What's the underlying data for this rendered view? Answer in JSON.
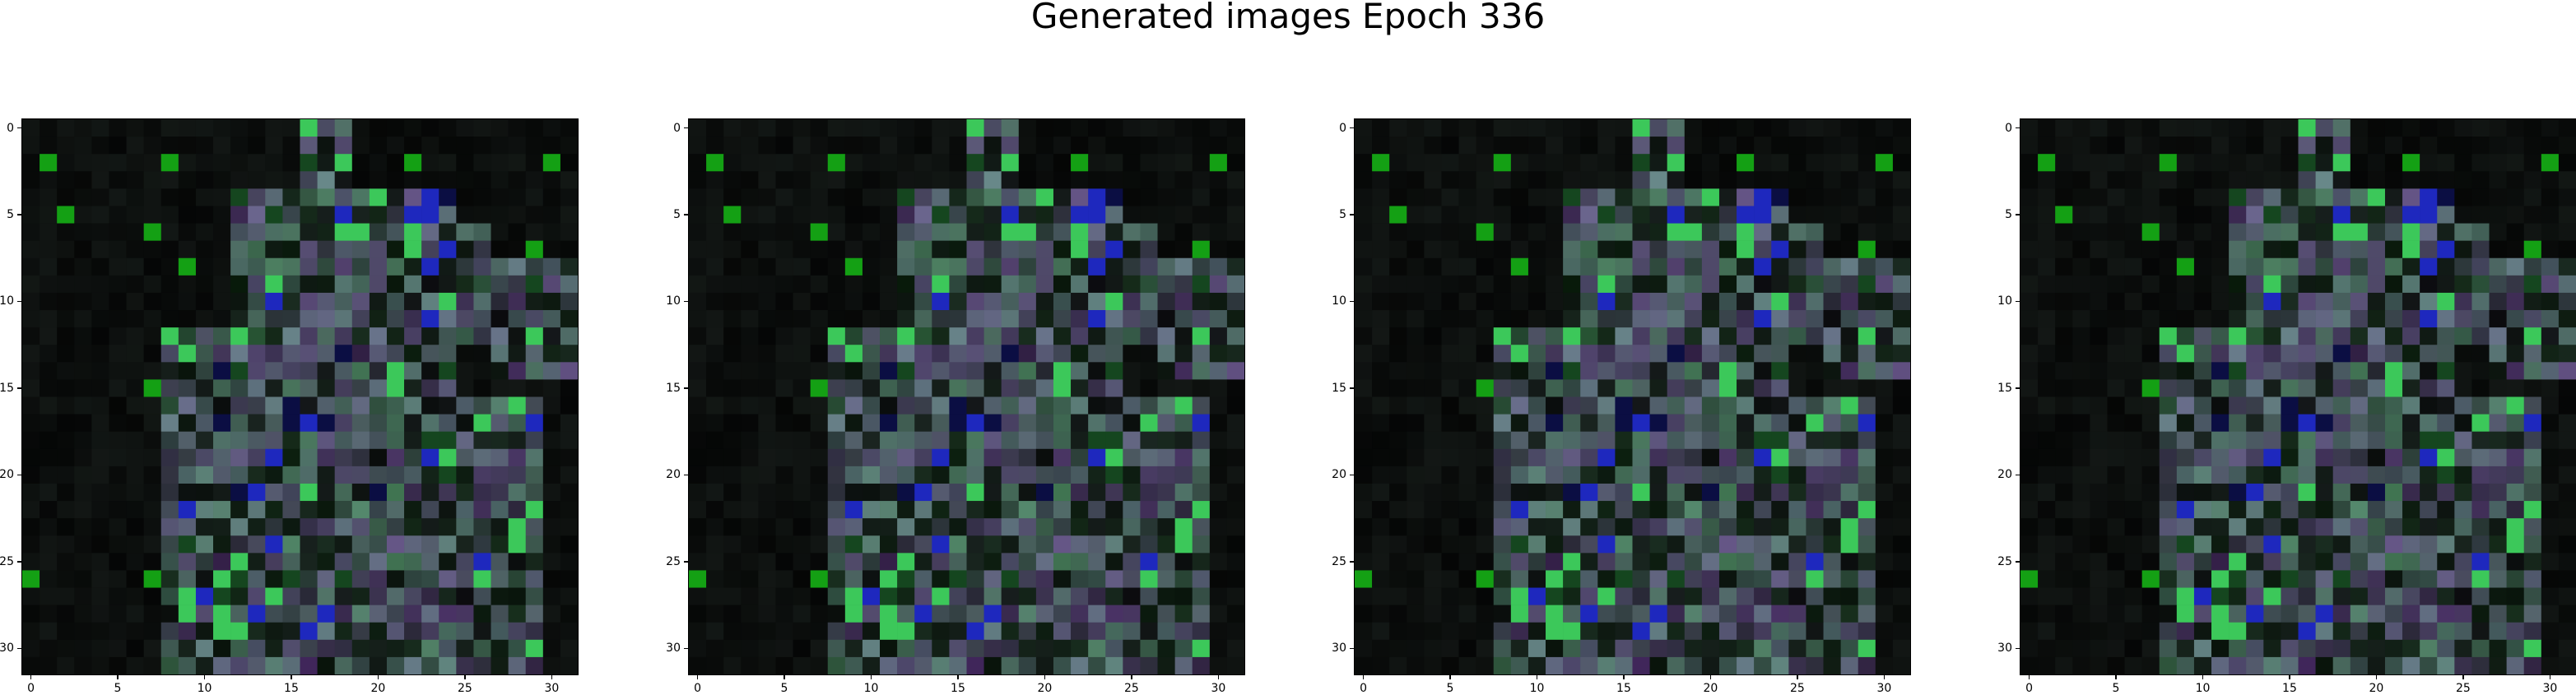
{
  "figure": {
    "title": "Generated images Epoch 336"
  },
  "panels": [
    {
      "id": "panel-1"
    },
    {
      "id": "panel-2"
    },
    {
      "id": "panel-3"
    },
    {
      "id": "panel-4"
    }
  ],
  "axes": {
    "x_ticks": [
      "0",
      "5",
      "10",
      "15",
      "20",
      "25",
      "30"
    ],
    "y_ticks": [
      "0",
      "5",
      "10",
      "15",
      "20",
      "25",
      "30"
    ],
    "x_tick_values": [
      0,
      5,
      10,
      15,
      20,
      25,
      30
    ],
    "y_tick_values": [
      0,
      5,
      10,
      15,
      20,
      25,
      30
    ],
    "x_range": [
      -0.5,
      31.5
    ],
    "y_range": [
      -0.5,
      31.5
    ]
  },
  "image": {
    "grid_size": 32,
    "background_color": "#020202"
  }
}
